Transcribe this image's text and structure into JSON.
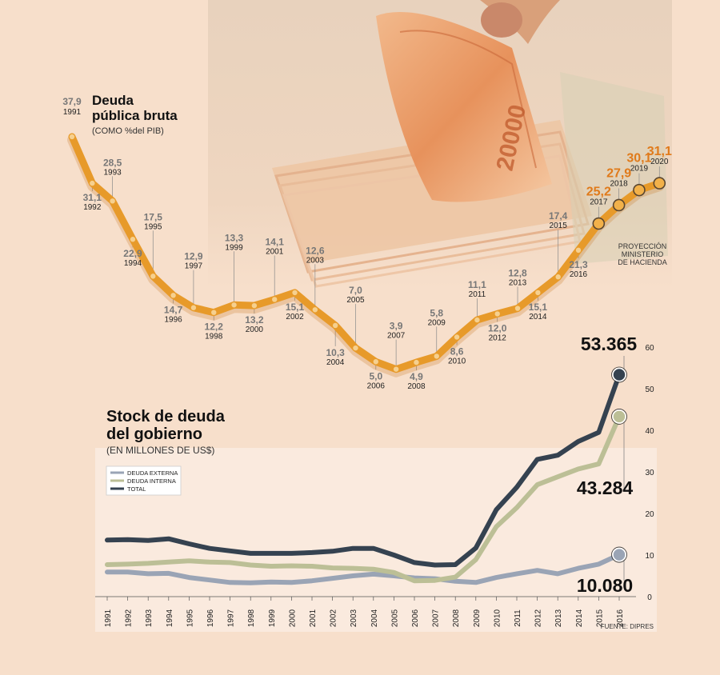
{
  "colors": {
    "background": "#f7dfcb",
    "debt_line": "#e79a2a",
    "debt_line_dark": "#c6731a",
    "projection_label": "#e07a1a",
    "gray_label": "#777777",
    "externa": "#9aa4b5",
    "interna": "#bcbf96",
    "total": "#354250",
    "lower_panel": "#faeade"
  },
  "chart_data": [
    {
      "type": "line",
      "title": "Deuda pública bruta",
      "subtitle": "(COMO %del PIB)",
      "x": [
        "1991",
        "1992",
        "1993",
        "1994",
        "1995",
        "1996",
        "1997",
        "1998",
        "1999",
        "2000",
        "2001",
        "2002",
        "2003",
        "2004",
        "2005",
        "2006",
        "2007",
        "2008",
        "2009",
        "2010",
        "2011",
        "2012",
        "2013",
        "2014",
        "2015",
        "2016",
        "2017",
        "2018",
        "2019",
        "2020"
      ],
      "series": [
        {
          "values": [
            37.9,
            31.1,
            28.5,
            22.9,
            17.5,
            14.7,
            12.9,
            12.2,
            13.3,
            13.2,
            14.1,
            15.1,
            12.6,
            10.3,
            7.0,
            5.0,
            3.9,
            4.9,
            5.8,
            8.6,
            11.1,
            12.0,
            12.8,
            15.1,
            17.4,
            21.3,
            25.2,
            27.9,
            30.1,
            31.1
          ],
          "labels": [
            "37,9",
            "31,1",
            "28,5",
            "22,9",
            "17,5",
            "14,7",
            "12,9",
            "12,2",
            "13,3",
            "13,2",
            "14,1",
            "15,1",
            "12,6",
            "10,3",
            "7,0",
            "5,0",
            "3,9",
            "4,9",
            "5,8",
            "8,6",
            "11,1",
            "12,0",
            "12,8",
            "15,1",
            "17,4",
            "21,3",
            "25,2",
            "27,9",
            "30,1",
            "31,1"
          ]
        }
      ],
      "projection_years": [
        "2017",
        "2018",
        "2019",
        "2020"
      ],
      "projection_note": "PROYECCIÓN MINISTERIO DE HACIENDA"
    },
    {
      "type": "line",
      "title": "Stock de deuda del gobierno",
      "subtitle": "(EN MILLONES DE US$)",
      "x": [
        "1991",
        "1992",
        "1993",
        "1994",
        "1995",
        "1996",
        "1997",
        "1998",
        "1999",
        "2000",
        "2001",
        "2002",
        "2003",
        "2004",
        "2005",
        "2006",
        "2007",
        "2008",
        "2009",
        "2010",
        "2011",
        "2012",
        "2013",
        "2014",
        "2015",
        "2016"
      ],
      "ylim": [
        0,
        60
      ],
      "yticks": [
        0,
        10,
        20,
        30,
        40,
        50,
        60
      ],
      "legend_position": "top-left",
      "series": [
        {
          "name": "DEUDA EXTERNA",
          "values": [
            5.9,
            5.9,
            5.5,
            5.6,
            4.6,
            4.0,
            3.4,
            3.3,
            3.5,
            3.4,
            3.8,
            4.4,
            5.0,
            5.4,
            5.0,
            4.5,
            4.3,
            3.7,
            3.4,
            4.6,
            5.5,
            6.3,
            5.5,
            6.8,
            7.8,
            10.08
          ]
        },
        {
          "name": "DEUDA INTERNA",
          "values": [
            7.7,
            7.8,
            8.0,
            8.3,
            8.6,
            8.3,
            8.2,
            7.6,
            7.3,
            7.4,
            7.3,
            6.9,
            6.8,
            6.6,
            5.8,
            3.8,
            3.9,
            4.7,
            8.9,
            16.8,
            21.4,
            26.9,
            28.8,
            30.7,
            31.9,
            43.284
          ]
        },
        {
          "name": "TOTAL",
          "values": [
            13.6,
            13.7,
            13.5,
            13.9,
            12.7,
            11.6,
            11.0,
            10.4,
            10.4,
            10.4,
            10.6,
            10.9,
            11.6,
            11.6,
            10.0,
            8.2,
            7.6,
            7.7,
            11.7,
            20.9,
            26.3,
            33.0,
            34.0,
            37.3,
            39.5,
            53.365
          ]
        }
      ],
      "end_labels": {
        "total": "53.365",
        "interna": "43.284",
        "externa": "10.080"
      }
    }
  ],
  "source": "FUENTE: DIPRES"
}
